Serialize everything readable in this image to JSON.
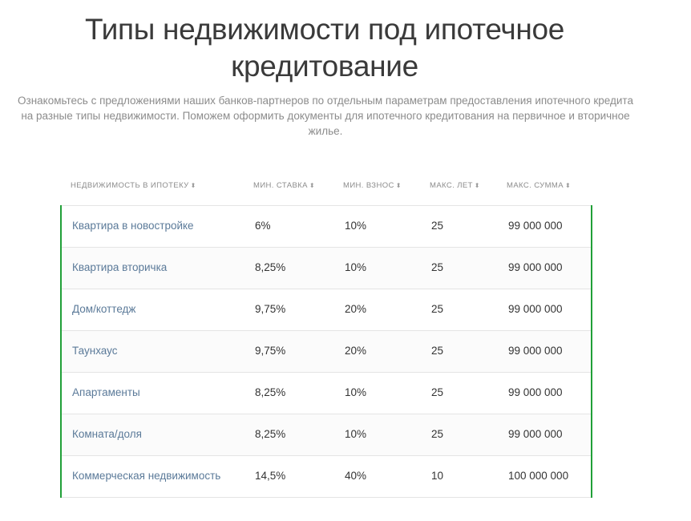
{
  "page": {
    "title_line1": "Типы недвижимости под ипотечное",
    "title_line2": "кредитование",
    "subtitle": "Ознакомьтесь с предложениями наших банков-партнеров по отдельным параметрам предоставления ипотечного кредита на разные типы недвижимости. Поможем оформить документы для ипотечного кредитования на первичное и вторичное жилье."
  },
  "table": {
    "sort_icon": "⬍",
    "headers": [
      {
        "label": "НЕДВИЖИМОСТЬ В ИПОТЕКУ"
      },
      {
        "label": "МИН. СТАВКА"
      },
      {
        "label": "МИН. ВЗНОС"
      },
      {
        "label": "МАКС. ЛЕТ"
      },
      {
        "label": "МАКС. СУММА"
      }
    ],
    "rows": [
      {
        "type": "Квартира в новостройке",
        "rate": "6%",
        "down": "10%",
        "years": "25",
        "sum": "99 000 000"
      },
      {
        "type": "Квартира вторичка",
        "rate": "8,25%",
        "down": "10%",
        "years": "25",
        "sum": "99 000 000"
      },
      {
        "type": "Дом/коттедж",
        "rate": "9,75%",
        "down": "20%",
        "years": "25",
        "sum": "99 000 000"
      },
      {
        "type": "Таунхаус",
        "rate": "9,75%",
        "down": "20%",
        "years": "25",
        "sum": "99 000 000"
      },
      {
        "type": "Апартаменты",
        "rate": "8,25%",
        "down": "10%",
        "years": "25",
        "sum": "99 000 000"
      },
      {
        "type": "Комната/доля",
        "rate": "8,25%",
        "down": "10%",
        "years": "25",
        "sum": "99 000 000"
      },
      {
        "type": "Коммерческая недвижимость",
        "rate": "14,5%",
        "down": "40%",
        "years": "10",
        "sum": "100 000 000"
      }
    ]
  },
  "colors": {
    "accent": "#21a038",
    "link": "#5b7a99",
    "muted": "#8c8c8c"
  }
}
